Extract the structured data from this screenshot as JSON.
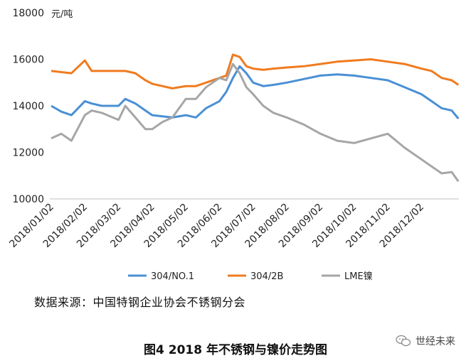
{
  "chart_data": {
    "type": "line",
    "unit_label": "元/吨",
    "ylim": [
      10000,
      18000
    ],
    "y_ticks": [
      "10000",
      "12000",
      "14000",
      "16000",
      "18000"
    ],
    "x_ticks": [
      "2018/01/02",
      "2018/02/02",
      "2018/03/02",
      "2018/04/02",
      "2018/05/02",
      "2018/06/02",
      "2018/07/02",
      "2018/08/02",
      "2018/09/02",
      "2018/10/02",
      "2018/11/02",
      "2018/12/02"
    ],
    "grid": false,
    "legend_position": "bottom",
    "x_month_index": [
      0,
      0.3,
      0.6,
      1.0,
      1.2,
      1.5,
      2.0,
      2.2,
      2.5,
      2.8,
      3.0,
      3.3,
      3.6,
      4.0,
      4.3,
      4.6,
      5.0,
      5.2,
      5.4,
      5.6,
      5.8,
      6.0,
      6.3,
      6.6,
      7.0,
      7.5,
      8.0,
      8.5,
      9.0,
      9.5,
      10.0,
      10.5,
      11.0,
      11.3,
      11.6,
      11.9,
      12.1
    ],
    "series": [
      {
        "name": "304/NO.1",
        "color": "#4a8fd4",
        "values": [
          14000,
          13750,
          13600,
          14200,
          14100,
          14000,
          14000,
          14300,
          14100,
          13800,
          13600,
          13550,
          13500,
          13600,
          13500,
          13900,
          14200,
          14600,
          15200,
          15700,
          15400,
          15000,
          14850,
          14900,
          15000,
          15150,
          15300,
          15350,
          15300,
          15200,
          15100,
          14800,
          14500,
          14200,
          13900,
          13800,
          13450
        ]
      },
      {
        "name": "304/2B",
        "color": "#f07b1f",
        "values": [
          15500,
          15450,
          15400,
          15950,
          15500,
          15500,
          15500,
          15500,
          15400,
          15100,
          14950,
          14850,
          14750,
          14850,
          14850,
          15000,
          15200,
          15300,
          16200,
          16100,
          15700,
          15600,
          15550,
          15600,
          15650,
          15700,
          15800,
          15900,
          15950,
          16000,
          15900,
          15800,
          15600,
          15500,
          15200,
          15100,
          14900
        ]
      },
      {
        "name": "LME镍",
        "color": "#a6a6a6",
        "values": [
          12600,
          12800,
          12500,
          13600,
          13800,
          13700,
          13400,
          14000,
          13500,
          13000,
          13000,
          13300,
          13500,
          14300,
          14300,
          14800,
          15200,
          15100,
          15800,
          15400,
          14800,
          14500,
          14000,
          13700,
          13500,
          13200,
          12800,
          12500,
          12400,
          12600,
          12800,
          12200,
          11700,
          11400,
          11100,
          11150,
          10750
        ]
      }
    ]
  },
  "source_text": "数据来源：中国特钢企业协会不锈钢分会",
  "caption": "图4  2018 年不锈钢与镍价走势图",
  "watermark_text": "世经未来"
}
